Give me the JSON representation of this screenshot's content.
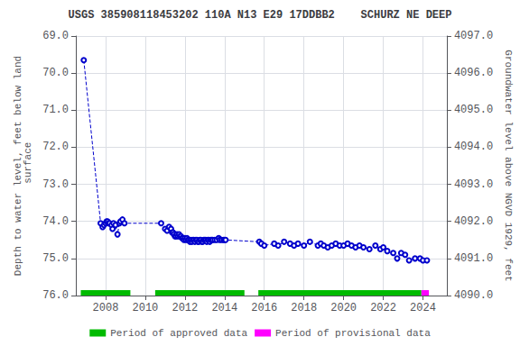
{
  "chart_data": {
    "type": "line",
    "title": "USGS 385908118453202 110A N13 E29 17DDBB2    SCHURZ NE DEEP",
    "ylabel": "Depth to water level, feet below land\n surface",
    "y2label": "Groundwater level above NGVD 1929, feet",
    "xlim": [
      2006.5,
      2025.2
    ],
    "xticks": [
      2008,
      2010,
      2012,
      2014,
      2016,
      2018,
      2020,
      2022,
      2024
    ],
    "ylim": [
      76.0,
      69.0
    ],
    "yticks": [
      {
        "value": 69,
        "label": "69.0"
      },
      {
        "value": 70,
        "label": "70.0"
      },
      {
        "value": 71,
        "label": "71.0"
      },
      {
        "value": 72,
        "label": "72.0"
      },
      {
        "value": 73,
        "label": "73.0"
      },
      {
        "value": 74,
        "label": "74.0"
      },
      {
        "value": 75,
        "label": "75.0"
      },
      {
        "value": 76,
        "label": "76.0"
      }
    ],
    "y2lim": [
      4090.0,
      4097.0
    ],
    "y2ticks": [
      {
        "value": 4090,
        "label": "4090.0"
      },
      {
        "value": 4091,
        "label": "4091.0"
      },
      {
        "value": 4092,
        "label": "4092.0"
      },
      {
        "value": 4093,
        "label": "4093.0"
      },
      {
        "value": 4094,
        "label": "4094.0"
      },
      {
        "value": 4095,
        "label": "4095.0"
      },
      {
        "value": 4096,
        "label": "4096.0"
      },
      {
        "value": 4097,
        "label": "4097.0"
      }
    ],
    "grid": true,
    "legend": "bottom",
    "color": "#0000cc",
    "marker": "circle",
    "line_style": "dashed",
    "x": [
      2006.9,
      2007.75,
      2007.85,
      2007.92,
      2008.0,
      2008.05,
      2008.1,
      2008.15,
      2008.2,
      2008.3,
      2008.35,
      2008.4,
      2008.5,
      2008.6,
      2008.7,
      2008.75,
      2008.85,
      2008.95,
      2010.8,
      2011.0,
      2011.1,
      2011.2,
      2011.3,
      2011.35,
      2011.4,
      2011.45,
      2011.5,
      2011.55,
      2011.6,
      2011.65,
      2011.7,
      2011.75,
      2011.8,
      2011.85,
      2011.9,
      2011.95,
      2012.0,
      2012.05,
      2012.1,
      2012.15,
      2012.2,
      2012.25,
      2012.3,
      2012.35,
      2012.4,
      2012.45,
      2012.5,
      2012.55,
      2012.6,
      2012.65,
      2012.7,
      2012.75,
      2012.8,
      2012.85,
      2012.9,
      2012.95,
      2013.0,
      2013.05,
      2013.1,
      2013.15,
      2013.2,
      2013.25,
      2013.3,
      2013.35,
      2013.4,
      2013.5,
      2013.6,
      2013.7,
      2013.75,
      2013.85,
      2013.95,
      2014.0,
      2014.05,
      2015.75,
      2015.85,
      2016.0,
      2016.5,
      2016.7,
      2017.0,
      2017.3,
      2017.5,
      2017.7,
      2018.0,
      2018.3,
      2018.7,
      2018.85,
      2019.0,
      2019.2,
      2019.4,
      2019.6,
      2019.8,
      2020.0,
      2020.2,
      2020.4,
      2020.6,
      2020.8,
      2021.0,
      2021.3,
      2021.6,
      2021.85,
      2022.0,
      2022.2,
      2022.5,
      2022.7,
      2022.9,
      2023.1,
      2023.3,
      2023.6,
      2023.85,
      2024.0,
      2024.2
    ],
    "values": [
      69.65,
      74.05,
      74.15,
      74.1,
      74.05,
      74.0,
      74.0,
      74.05,
      74.05,
      74.1,
      74.2,
      74.05,
      74.1,
      74.35,
      74.05,
      74.0,
      73.95,
      74.05,
      74.05,
      74.2,
      74.25,
      74.15,
      74.2,
      74.3,
      74.3,
      74.35,
      74.4,
      74.4,
      74.35,
      74.4,
      74.35,
      74.4,
      74.4,
      74.45,
      74.45,
      74.5,
      74.45,
      74.5,
      74.45,
      74.5,
      74.5,
      74.55,
      74.5,
      74.55,
      74.5,
      74.5,
      74.55,
      74.5,
      74.5,
      74.55,
      74.55,
      74.5,
      74.5,
      74.55,
      74.55,
      74.5,
      74.5,
      74.5,
      74.55,
      74.5,
      74.5,
      74.55,
      74.5,
      74.5,
      74.5,
      74.5,
      74.5,
      74.45,
      74.5,
      74.5,
      74.5,
      74.5,
      74.5,
      74.55,
      74.6,
      74.65,
      74.6,
      74.65,
      74.55,
      74.6,
      74.65,
      74.6,
      74.65,
      74.55,
      74.65,
      74.6,
      74.65,
      74.7,
      74.65,
      74.6,
      74.65,
      74.65,
      74.6,
      74.65,
      74.7,
      74.65,
      74.7,
      74.75,
      74.65,
      74.75,
      74.7,
      74.8,
      74.85,
      75.0,
      74.85,
      74.9,
      75.05,
      75.0,
      75.0,
      75.05,
      75.05
    ],
    "periods": [
      {
        "name": "Period of approved data",
        "color": "#00bb00",
        "ranges": [
          [
            2006.75,
            2009.25
          ],
          [
            2010.5,
            2015.0
          ],
          [
            2015.7,
            2023.92
          ]
        ]
      },
      {
        "name": "Period of provisional data",
        "color": "#ff00ff",
        "ranges": [
          [
            2023.92,
            2024.3
          ]
        ]
      }
    ]
  }
}
